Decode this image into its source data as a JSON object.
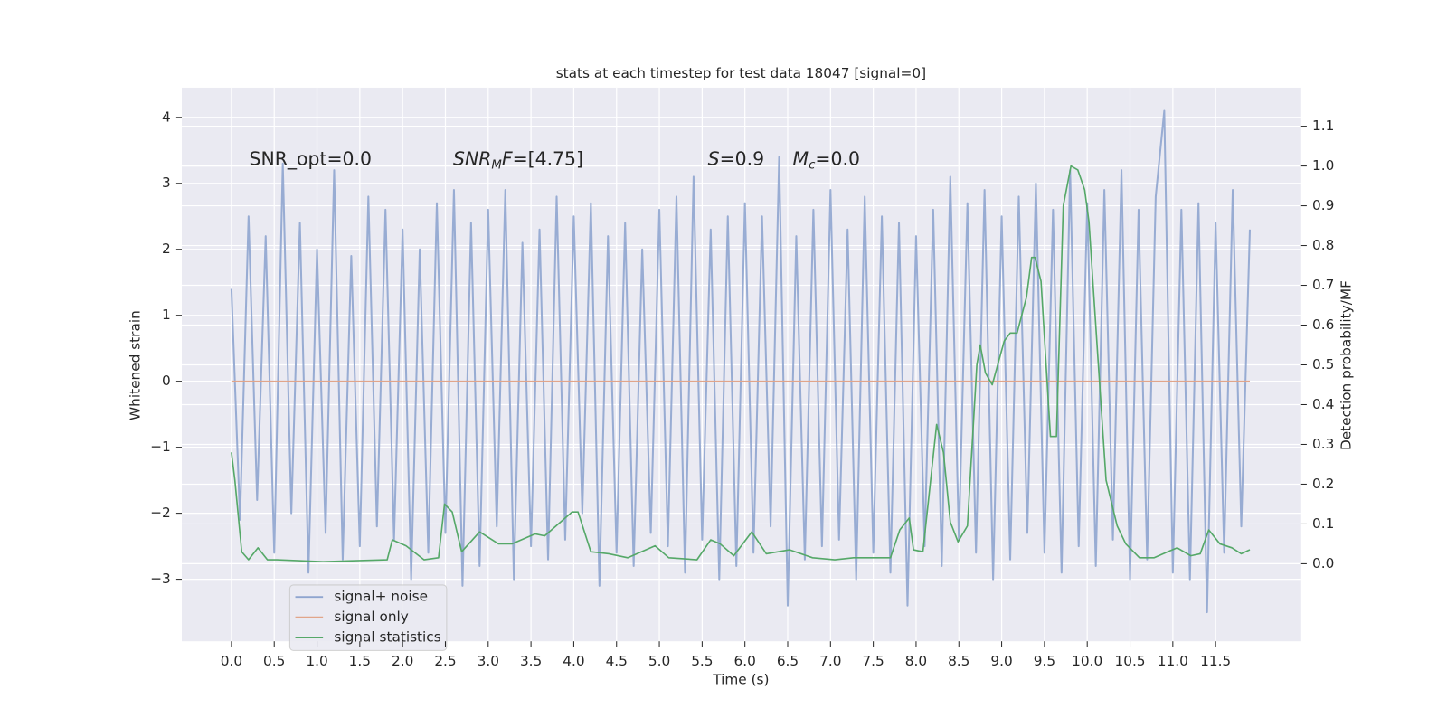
{
  "chart_data": {
    "type": "line",
    "title": "stats at each timestep for test data 18047 [signal=0]",
    "xlabel": "Time (s)",
    "ylabel": "Whitened strain",
    "y2label": "Detection probability/MF",
    "annotations": [
      [
        {
          "text": "SNR_opt=0.0"
        }
      ],
      [
        {
          "text": "SNR",
          "italic": true
        },
        {
          "text": "M",
          "italic": true,
          "sub": true
        },
        {
          "text": "F",
          "italic": true
        },
        {
          "text": "=[4.75]"
        }
      ],
      [
        {
          "text": "S",
          "italic": true
        },
        {
          "text": "=0.9"
        }
      ],
      [
        {
          "text": "M",
          "italic": true
        },
        {
          "text": "c",
          "italic": true,
          "sub": true
        },
        {
          "text": "=0.0"
        }
      ]
    ],
    "grid": true,
    "legend": "lower left",
    "facecolor": "#eaeaf2",
    "xlim": [
      -0.58,
      12.5
    ],
    "ylim": [
      -3.94,
      4.45
    ],
    "y2lim": [
      -0.195,
      1.197
    ],
    "xticks": [
      {
        "value": 0,
        "label": "0.0"
      },
      {
        "value": 0.5,
        "label": "0.5"
      },
      {
        "value": 1,
        "label": "1.0"
      },
      {
        "value": 1.5,
        "label": "1.5"
      },
      {
        "value": 2,
        "label": "2.0"
      },
      {
        "value": 2.5,
        "label": "2.5"
      },
      {
        "value": 3,
        "label": "3.0"
      },
      {
        "value": 3.5,
        "label": "3.5"
      },
      {
        "value": 4,
        "label": "4.0"
      },
      {
        "value": 4.5,
        "label": "4.5"
      },
      {
        "value": 5,
        "label": "5.0"
      },
      {
        "value": 5.5,
        "label": "5.5"
      },
      {
        "value": 6,
        "label": "6.0"
      },
      {
        "value": 6.5,
        "label": "6.5"
      },
      {
        "value": 7,
        "label": "7.0"
      },
      {
        "value": 7.5,
        "label": "7.5"
      },
      {
        "value": 8,
        "label": "8.0"
      },
      {
        "value": 8.5,
        "label": "8.5"
      },
      {
        "value": 9,
        "label": "9.0"
      },
      {
        "value": 9.5,
        "label": "9.5"
      },
      {
        "value": 10,
        "label": "10.0"
      },
      {
        "value": 10.5,
        "label": "10.5"
      },
      {
        "value": 11,
        "label": "11.0"
      },
      {
        "value": 11.5,
        "label": "11.5"
      }
    ],
    "yticks": [
      {
        "value": -3,
        "label": "−3"
      },
      {
        "value": -2,
        "label": "−2"
      },
      {
        "value": -1,
        "label": "−1"
      },
      0,
      1,
      2,
      3,
      4
    ],
    "y2ticks": [
      {
        "value": 0,
        "label": "0.0"
      },
      {
        "value": 0.1,
        "label": "0.1"
      },
      {
        "value": 0.2,
        "label": "0.2"
      },
      {
        "value": 0.3,
        "label": "0.3"
      },
      {
        "value": 0.4,
        "label": "0.4"
      },
      {
        "value": 0.5,
        "label": "0.5"
      },
      {
        "value": 0.6,
        "label": "0.6"
      },
      {
        "value": 0.7,
        "label": "0.7"
      },
      {
        "value": 0.8,
        "label": "0.8"
      },
      {
        "value": 0.9,
        "label": "0.9"
      },
      {
        "value": 1,
        "label": "1.0"
      },
      {
        "value": 1.1,
        "label": "1.1"
      }
    ],
    "series": [
      {
        "name": "signal+ noise",
        "color": "#8fa5cf",
        "x": [
          0,
          0.1,
          0.2,
          0.3,
          0.4,
          0.5,
          0.6,
          0.7,
          0.8,
          0.9,
          1,
          1.1,
          1.2,
          1.3,
          1.4,
          1.5,
          1.6,
          1.7,
          1.8,
          1.9,
          2,
          2.1,
          2.2,
          2.3,
          2.4,
          2.5,
          2.6,
          2.7,
          2.8,
          2.9,
          3,
          3.1,
          3.2,
          3.3,
          3.4,
          3.5,
          3.6,
          3.7,
          3.8,
          3.9,
          4,
          4.1,
          4.2,
          4.3,
          4.4,
          4.5,
          4.6,
          4.7,
          4.8,
          4.9,
          5,
          5.1,
          5.2,
          5.3,
          5.4,
          5.5,
          5.6,
          5.7,
          5.8,
          5.9,
          6,
          6.1,
          6.2,
          6.3,
          6.4,
          6.5,
          6.6,
          6.7,
          6.8,
          6.9,
          7,
          7.1,
          7.2,
          7.3,
          7.4,
          7.5,
          7.6,
          7.7,
          7.8,
          7.9,
          8,
          8.1,
          8.2,
          8.3,
          8.4,
          8.5,
          8.6,
          8.7,
          8.8,
          8.9,
          9,
          9.1,
          9.2,
          9.3,
          9.4,
          9.5,
          9.6,
          9.7,
          9.8,
          9.9,
          10,
          10.1,
          10.2,
          10.3,
          10.4,
          10.5,
          10.6,
          10.7,
          10.8,
          10.9,
          11,
          11.1,
          11.2,
          11.3,
          11.4,
          11.5,
          11.6,
          11.7,
          11.8,
          11.9
        ],
        "values": [
          1.4,
          -2.1,
          2.5,
          -1.8,
          2.2,
          -2.6,
          3.3,
          -2.0,
          2.4,
          -2.9,
          2.0,
          -2.3,
          3.2,
          -2.7,
          1.9,
          -2.5,
          2.8,
          -2.2,
          2.6,
          -2.4,
          2.3,
          -3.0,
          2.0,
          -2.6,
          2.7,
          -2.3,
          2.9,
          -3.1,
          2.4,
          -2.8,
          2.6,
          -2.2,
          2.9,
          -3.0,
          2.1,
          -2.5,
          2.3,
          -2.7,
          2.8,
          -2.4,
          2.5,
          -2.0,
          2.7,
          -3.1,
          2.2,
          -2.6,
          2.4,
          -2.8,
          2.0,
          -2.3,
          2.6,
          -2.5,
          2.8,
          -2.9,
          3.1,
          -2.4,
          2.3,
          -3.0,
          2.5,
          -2.8,
          2.7,
          -2.6,
          2.5,
          -2.2,
          3.4,
          -3.4,
          2.2,
          -2.7,
          2.6,
          -2.5,
          2.9,
          -2.4,
          2.3,
          -3.0,
          2.8,
          -2.6,
          2.5,
          -2.9,
          2.4,
          -3.4,
          2.2,
          -2.5,
          2.6,
          -2.8,
          3.1,
          -2.4,
          2.7,
          -2.6,
          2.9,
          -3.0,
          2.5,
          -2.7,
          2.8,
          -2.3,
          3.0,
          -2.6,
          2.6,
          -2.9,
          3.2,
          -2.5,
          2.7,
          -2.8,
          2.9,
          -2.4,
          3.2,
          -3.0,
          2.6,
          -2.7,
          2.8,
          4.1,
          -2.9,
          2.6,
          -3.0,
          2.7,
          -3.5,
          2.4,
          -2.6,
          2.9,
          -2.2,
          2.3
        ]
      },
      {
        "name": "signal only",
        "color": "#e1a58a",
        "x": [
          0,
          11.9
        ],
        "values": [
          0,
          0
        ]
      },
      {
        "name": "signal statistics",
        "color": "#55a868",
        "axis": "y2",
        "x": [
          0,
          0.04,
          0.12,
          0.2,
          0.31,
          0.42,
          0.53,
          1.07,
          1.82,
          1.88,
          2.04,
          2.25,
          2.42,
          2.49,
          2.58,
          2.69,
          2.9,
          3.12,
          3.28,
          3.55,
          3.66,
          3.98,
          4.05,
          4.2,
          4.41,
          4.63,
          4.95,
          5.11,
          5.44,
          5.6,
          5.71,
          5.87,
          6.08,
          6.25,
          6.52,
          6.79,
          7.05,
          7.27,
          7.7,
          7.81,
          7.92,
          7.97,
          8.08,
          8.24,
          8.32,
          8.4,
          8.49,
          8.6,
          8.71,
          8.75,
          8.81,
          8.89,
          9.03,
          9.1,
          9.18,
          9.29,
          9.35,
          9.39,
          9.46,
          9.57,
          9.64,
          9.72,
          9.81,
          9.89,
          9.97,
          10.02,
          10.13,
          10.22,
          10.35,
          10.45,
          10.61,
          10.78,
          10.94,
          11.05,
          11.21,
          11.32,
          11.42,
          11.55,
          11.69,
          11.8,
          11.9
        ],
        "values": [
          0.28,
          0.21,
          0.03,
          0.01,
          0.04,
          0.01,
          0.01,
          0.005,
          0.01,
          0.06,
          0.045,
          0.01,
          0.015,
          0.15,
          0.13,
          0.03,
          0.08,
          0.05,
          0.05,
          0.075,
          0.07,
          0.13,
          0.13,
          0.03,
          0.025,
          0.015,
          0.045,
          0.015,
          0.01,
          0.06,
          0.05,
          0.02,
          0.08,
          0.025,
          0.035,
          0.015,
          0.01,
          0.015,
          0.015,
          0.085,
          0.115,
          0.035,
          0.03,
          0.35,
          0.28,
          0.105,
          0.055,
          0.095,
          0.5,
          0.55,
          0.48,
          0.45,
          0.56,
          0.58,
          0.58,
          0.67,
          0.77,
          0.77,
          0.71,
          0.32,
          0.32,
          0.9,
          1.0,
          0.99,
          0.94,
          0.86,
          0.5,
          0.21,
          0.095,
          0.05,
          0.015,
          0.015,
          0.03,
          0.04,
          0.02,
          0.025,
          0.085,
          0.05,
          0.04,
          0.025,
          0.035
        ]
      }
    ]
  }
}
